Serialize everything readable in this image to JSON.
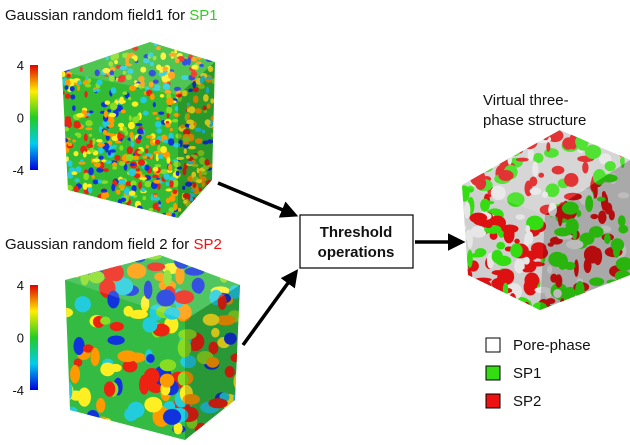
{
  "field1": {
    "title": "Gaussian random field1 for ",
    "phase": "SP1",
    "phase_color": "#33cc22",
    "colorbar_ticks": [
      4,
      0,
      -4
    ]
  },
  "field2": {
    "title": "Gaussian random field 2 for ",
    "phase": "SP2",
    "phase_color": "#ee1111",
    "colorbar_ticks": [
      4,
      0,
      -4
    ]
  },
  "operation": {
    "lines": [
      "Threshold",
      "operations"
    ]
  },
  "output": {
    "title_lines": [
      "Virtual three-",
      "phase structure"
    ]
  },
  "legend": [
    {
      "label": "Pore-phase",
      "color": "#ffffff"
    },
    {
      "label": "SP1",
      "color": "#33dd11"
    },
    {
      "label": "SP2",
      "color": "#ee1111"
    }
  ]
}
